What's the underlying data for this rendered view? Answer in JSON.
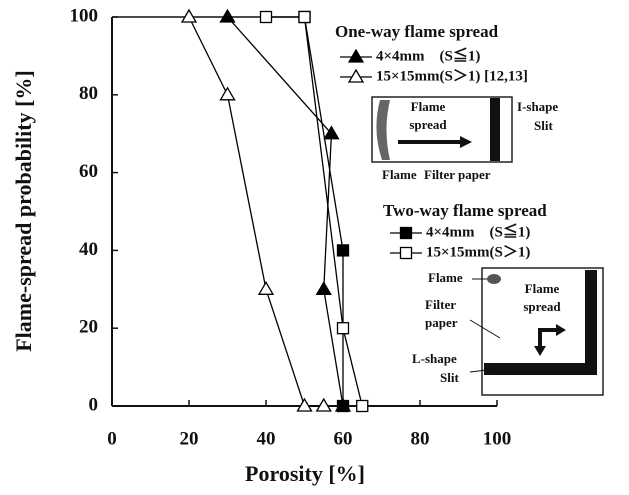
{
  "chart_data": {
    "type": "line",
    "x_label": "Porosity [%]",
    "y_label": "Flame-spread probability [%]",
    "xlim": [
      0,
      100
    ],
    "xticks": [
      0,
      20,
      40,
      60,
      80,
      100
    ],
    "ylim": [
      0,
      100
    ],
    "yticks": [
      0,
      20,
      40,
      60,
      80,
      100
    ],
    "legend_titles": [
      "One-way flame spread",
      "Two-way flame spread"
    ],
    "series": [
      {
        "name": "4×4mm　(S≦1)",
        "color": "#000000",
        "marker": "triangle",
        "filled": true,
        "x": [
          30,
          57,
          55,
          60
        ],
        "values": [
          100,
          70,
          30,
          0
        ]
      },
      {
        "name": "15×15mm(S＞1) [12,13]",
        "color": "#000000",
        "marker": "triangle",
        "filled": false,
        "x": [
          20,
          30,
          40,
          50,
          55
        ],
        "values": [
          100,
          80,
          30,
          0,
          0
        ]
      },
      {
        "name": "4×4mm　(S≦1)",
        "color": "#000000",
        "marker": "square",
        "filled": true,
        "x": [
          50,
          60,
          60
        ],
        "values": [
          100,
          40,
          0
        ]
      },
      {
        "name": "15×15mm(S＞1)",
        "color": "#000000",
        "marker": "square",
        "filled": false,
        "x": [
          40,
          50,
          60,
          65
        ],
        "values": [
          100,
          100,
          20,
          0
        ]
      }
    ],
    "inset_one_way": [
      "Flame",
      "spread",
      "I-shape",
      "Slit",
      "Flame",
      "Filter paper"
    ],
    "inset_two_way": [
      "Flame",
      "Flame",
      "spread",
      "Filter",
      "paper",
      "L-shape",
      "Slit"
    ]
  }
}
